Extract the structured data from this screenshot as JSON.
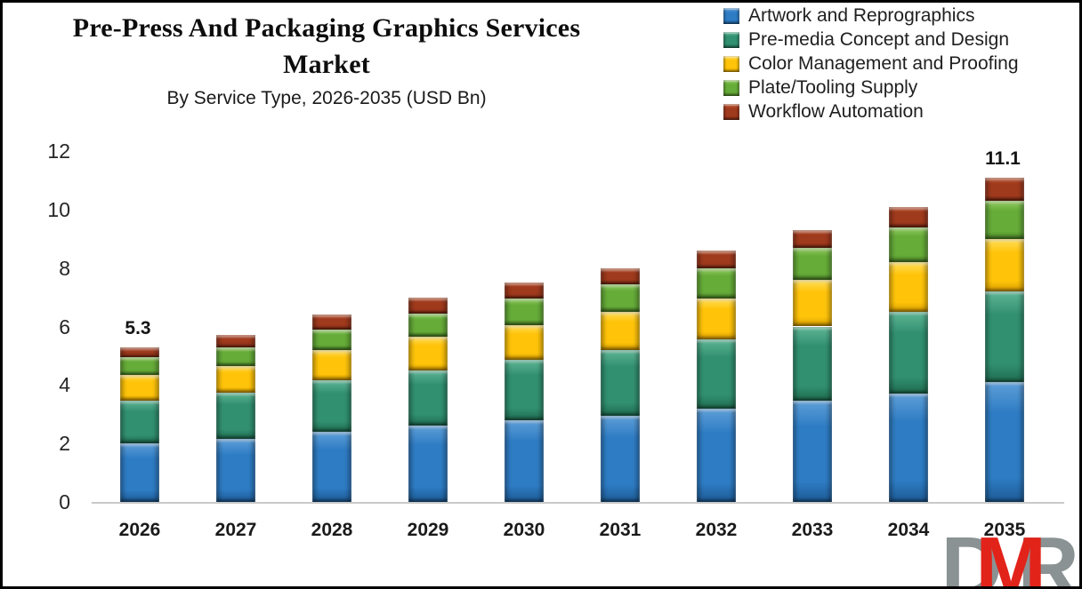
{
  "header": {
    "title_line1": "Pre-Press And Packaging Graphics Services",
    "title_line2": "Market",
    "subtitle": "By Service Type, 2026-2035 (USD Bn)"
  },
  "chart_data": {
    "type": "bar",
    "stacked": true,
    "title": "Pre-Press And Packaging Graphics Services Market",
    "subtitle": "By Service Type, 2026-2035 (USD Bn)",
    "unit": "USD Bn",
    "categories": [
      "2026",
      "2027",
      "2028",
      "2029",
      "2030",
      "2031",
      "2032",
      "2033",
      "2034",
      "2035"
    ],
    "series": [
      {
        "name": "Artwork and Reprographics",
        "values": [
          2.0,
          2.15,
          2.4,
          2.6,
          2.8,
          2.95,
          3.2,
          3.45,
          3.7,
          4.1
        ],
        "fill": {
          "light": "#5E9FD8",
          "base": "#2E7CC4",
          "dark": "#1D5A94"
        }
      },
      {
        "name": "Pre-media Concept and Design",
        "values": [
          1.45,
          1.6,
          1.75,
          1.9,
          2.05,
          2.25,
          2.35,
          2.55,
          2.8,
          3.1
        ],
        "fill": {
          "light": "#5FB696",
          "base": "#319070",
          "dark": "#1F6B50"
        }
      },
      {
        "name": "Color Management and Proofing",
        "values": [
          0.9,
          0.9,
          1.05,
          1.15,
          1.2,
          1.3,
          1.4,
          1.6,
          1.7,
          1.8
        ],
        "fill": {
          "light": "#FFDE5C",
          "base": "#FFC40A",
          "dark": "#D99E00"
        }
      },
      {
        "name": "Plate/Tooling Supply",
        "values": [
          0.6,
          0.65,
          0.7,
          0.8,
          0.9,
          0.95,
          1.05,
          1.1,
          1.2,
          1.3
        ],
        "fill": {
          "light": "#93CC62",
          "base": "#66AC39",
          "dark": "#4C8526"
        }
      },
      {
        "name": "Workflow Automation",
        "values": [
          0.35,
          0.4,
          0.5,
          0.55,
          0.55,
          0.55,
          0.6,
          0.6,
          0.7,
          0.8
        ],
        "fill": {
          "light": "#C05B38",
          "base": "#A03A1D",
          "dark": "#7A2812"
        }
      }
    ],
    "totals": [
      5.3,
      5.7,
      6.4,
      7.0,
      7.5,
      8.0,
      8.6,
      9.3,
      10.1,
      11.1
    ],
    "total_labels": {
      "2026": "5.3",
      "2035": "11.1"
    },
    "ylim": [
      0,
      12
    ],
    "yticks": [
      0,
      2,
      4,
      6,
      8,
      10,
      12
    ],
    "grid": false,
    "legend_position": "top-right"
  },
  "logo": {
    "letter_d": "D",
    "letter_m": "M",
    "letter_r": "R",
    "gray": "#8A9293",
    "red": "#E2231A"
  }
}
